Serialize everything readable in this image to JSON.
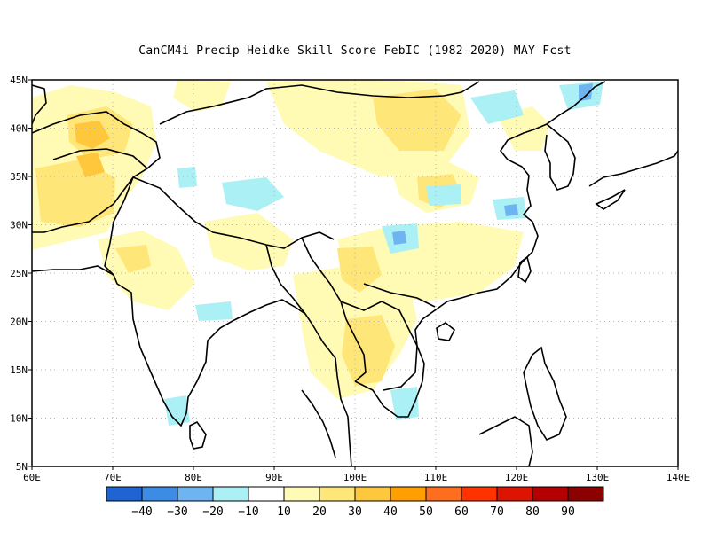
{
  "title": "CanCM4i Precip Heidke Skill Score FebIC (1982-2020) MAY Fcst",
  "map": {
    "lon_range": [
      60,
      140
    ],
    "lat_range": [
      5,
      45
    ],
    "grid": true,
    "lon_ticks": [
      "60E",
      "70E",
      "80E",
      "90E",
      "100E",
      "110E",
      "120E",
      "130E",
      "140E"
    ],
    "lat_ticks": [
      "5N",
      "10N",
      "15N",
      "20N",
      "25N",
      "30N",
      "35N",
      "40N",
      "45N"
    ]
  },
  "colorbar": {
    "colors": [
      "#1e64d2",
      "#3c8ce6",
      "#6eb4f0",
      "#aaf0f5",
      "#ffffff",
      "#fffab4",
      "#ffe678",
      "#ffc83c",
      "#ffa000",
      "#ff6e1e",
      "#ff3200",
      "#dc1400",
      "#b40000",
      "#8c0000"
    ],
    "labels": [
      "-40",
      "-30",
      "-20",
      "-10",
      "10",
      "20",
      "30",
      "40",
      "50",
      "60",
      "70",
      "80",
      "90"
    ]
  }
}
